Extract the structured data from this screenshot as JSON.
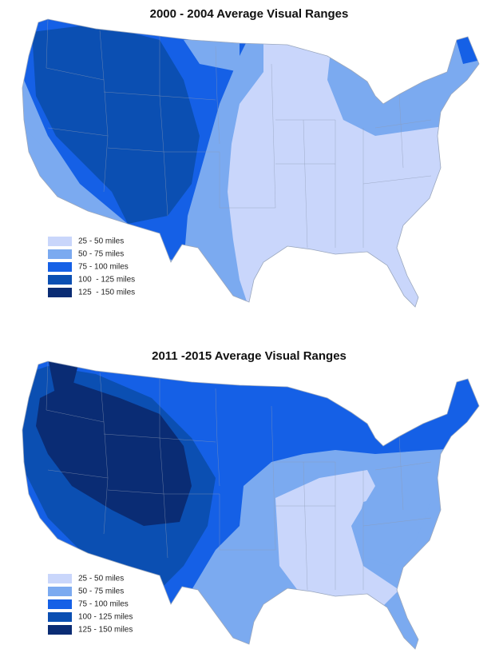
{
  "maps": [
    {
      "title": "2000 - 2004 Average Visual Ranges",
      "legend": [
        {
          "label": "25 - 50 miles",
          "color": "#c9d6fb"
        },
        {
          "label": "50 - 75 miles",
          "color": "#7baaf0"
        },
        {
          "label": "75 - 100 miles",
          "color": "#1560e6"
        },
        {
          "label": "100  - 125 miles",
          "color": "#0b4fb2"
        },
        {
          "label": "125  - 150 miles",
          "color": "#0a2c74"
        }
      ]
    },
    {
      "title": "2011 -2015 Average Visual Ranges",
      "legend": [
        {
          "label": "25 - 50 miles",
          "color": "#c9d6fb"
        },
        {
          "label": "50 - 75 miles",
          "color": "#7baaf0"
        },
        {
          "label": "75 - 100 miles",
          "color": "#1560e6"
        },
        {
          "label": "100 - 125 miles",
          "color": "#0b4fb2"
        },
        {
          "label": "125 - 150 miles",
          "color": "#0a2c74"
        }
      ]
    }
  ]
}
